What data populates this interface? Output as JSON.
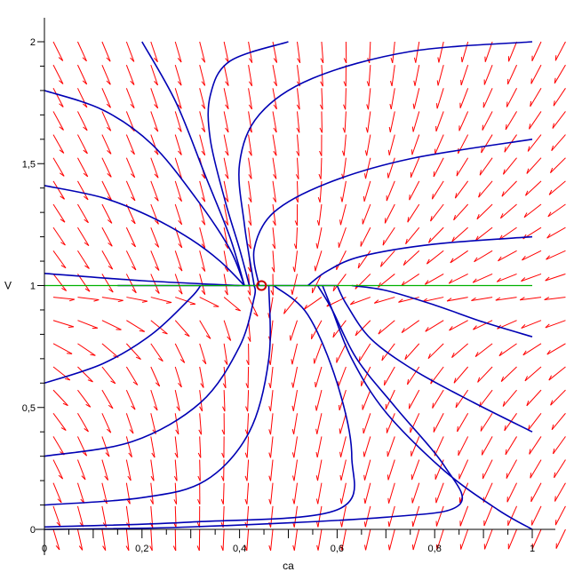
{
  "chart_data": {
    "type": "line",
    "subtype": "phase-portrait",
    "title": "",
    "xlabel": "ca",
    "ylabel": "V",
    "xlim": [
      0,
      1
    ],
    "ylim": [
      0,
      2
    ],
    "x_tick_labels": [
      {
        "value": 0,
        "label": "0"
      },
      {
        "value": 0.2,
        "label": "0,2"
      },
      {
        "value": 0.4,
        "label": "0,4"
      },
      {
        "value": 0.6,
        "label": "0,6"
      },
      {
        "value": 0.8,
        "label": "0,8"
      },
      {
        "value": 1,
        "label": "1"
      }
    ],
    "y_tick_labels": [
      {
        "value": 0,
        "label": "0"
      },
      {
        "value": 0.5,
        "label": "0,5"
      },
      {
        "value": 1,
        "label": "1"
      },
      {
        "value": 1.5,
        "label": "1,5"
      },
      {
        "value": 2,
        "label": "2"
      }
    ],
    "equilibrium": {
      "x": 0.445,
      "y": 1.0
    },
    "nullcline": {
      "y": 1.0,
      "color": "#00b000"
    },
    "field_color": "#ff0000",
    "trajectory_color": "#0000b4",
    "marker_color": "#cc0000",
    "grid": false,
    "legend": "none",
    "trajectories": [
      {
        "points": [
          [
            0.2,
            2.0
          ],
          [
            0.27,
            1.75
          ],
          [
            0.33,
            1.45
          ],
          [
            0.38,
            1.2
          ],
          [
            0.41,
            1.0
          ]
        ]
      },
      {
        "points": [
          [
            0.0,
            1.8
          ],
          [
            0.12,
            1.72
          ],
          [
            0.22,
            1.58
          ],
          [
            0.31,
            1.36
          ],
          [
            0.38,
            1.15
          ],
          [
            0.41,
            1.0
          ]
        ]
      },
      {
        "points": [
          [
            0.0,
            1.41
          ],
          [
            0.12,
            1.36
          ],
          [
            0.22,
            1.28
          ],
          [
            0.3,
            1.19
          ],
          [
            0.36,
            1.1
          ],
          [
            0.41,
            1.0
          ]
        ]
      },
      {
        "points": [
          [
            0.0,
            1.05
          ],
          [
            0.2,
            1.02
          ],
          [
            0.4,
            1.0
          ]
        ]
      },
      {
        "points": [
          [
            0.5,
            2.0
          ],
          [
            0.38,
            1.92
          ],
          [
            0.34,
            1.78
          ],
          [
            0.34,
            1.6
          ],
          [
            0.37,
            1.35
          ],
          [
            0.4,
            1.15
          ],
          [
            0.42,
            1.0
          ]
        ]
      },
      {
        "points": [
          [
            1.0,
            2.0
          ],
          [
            0.75,
            1.96
          ],
          [
            0.55,
            1.85
          ],
          [
            0.44,
            1.7
          ],
          [
            0.4,
            1.5
          ],
          [
            0.41,
            1.25
          ],
          [
            0.43,
            1.0
          ]
        ]
      },
      {
        "points": [
          [
            1.0,
            1.6
          ],
          [
            0.75,
            1.52
          ],
          [
            0.58,
            1.42
          ],
          [
            0.47,
            1.3
          ],
          [
            0.43,
            1.15
          ],
          [
            0.44,
            1.0
          ]
        ]
      },
      {
        "points": [
          [
            1.0,
            1.2
          ],
          [
            0.8,
            1.17
          ],
          [
            0.65,
            1.12
          ],
          [
            0.58,
            1.06
          ],
          [
            0.54,
            1.0
          ]
        ]
      },
      {
        "points": [
          [
            0.0,
            0.6
          ],
          [
            0.12,
            0.68
          ],
          [
            0.22,
            0.8
          ],
          [
            0.3,
            0.95
          ],
          [
            0.32,
            1.0
          ]
        ]
      },
      {
        "points": [
          [
            0.0,
            0.3
          ],
          [
            0.18,
            0.36
          ],
          [
            0.32,
            0.52
          ],
          [
            0.4,
            0.75
          ],
          [
            0.43,
            0.95
          ],
          [
            0.43,
            1.0
          ]
        ]
      },
      {
        "points": [
          [
            0.0,
            0.1
          ],
          [
            0.2,
            0.13
          ],
          [
            0.33,
            0.2
          ],
          [
            0.42,
            0.4
          ],
          [
            0.46,
            0.7
          ],
          [
            0.46,
            1.0
          ]
        ]
      },
      {
        "points": [
          [
            0.0,
            0.01
          ],
          [
            0.3,
            0.03
          ],
          [
            0.6,
            0.08
          ],
          [
            0.63,
            0.3
          ],
          [
            0.6,
            0.6
          ],
          [
            0.54,
            0.88
          ],
          [
            0.47,
            1.0
          ]
        ]
      },
      {
        "points": [
          [
            0.0,
            0.0
          ],
          [
            0.3,
            0.01
          ],
          [
            0.7,
            0.05
          ],
          [
            0.85,
            0.1
          ],
          [
            0.82,
            0.26
          ],
          [
            0.72,
            0.5
          ],
          [
            0.64,
            0.7
          ],
          [
            0.59,
            0.9
          ],
          [
            0.56,
            1.0
          ]
        ]
      },
      {
        "points": [
          [
            1.0,
            0.0
          ],
          [
            0.93,
            0.08
          ],
          [
            0.82,
            0.24
          ],
          [
            0.7,
            0.48
          ],
          [
            0.63,
            0.7
          ],
          [
            0.59,
            0.9
          ],
          [
            0.57,
            1.0
          ]
        ]
      },
      {
        "points": [
          [
            1.0,
            0.4
          ],
          [
            0.88,
            0.52
          ],
          [
            0.76,
            0.65
          ],
          [
            0.67,
            0.78
          ],
          [
            0.62,
            0.92
          ],
          [
            0.6,
            1.0
          ]
        ]
      },
      {
        "points": [
          [
            1.0,
            0.79
          ],
          [
            0.9,
            0.85
          ],
          [
            0.8,
            0.92
          ],
          [
            0.7,
            0.98
          ],
          [
            0.63,
            1.0
          ]
        ]
      }
    ]
  }
}
